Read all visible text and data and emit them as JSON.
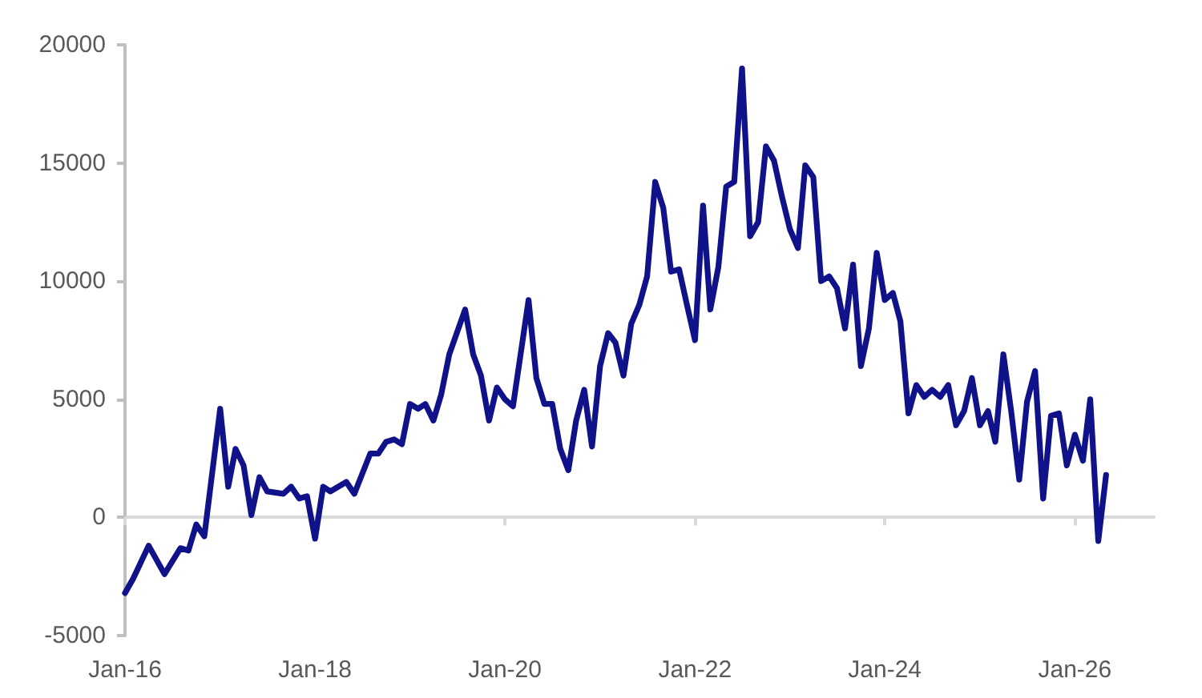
{
  "chart_data": {
    "type": "line",
    "color": "#10128a",
    "line_style": "solid",
    "marker": "none",
    "x": [
      "2016-01",
      "2016-02",
      "2016-04",
      "2016-06",
      "2016-08",
      "2016-09",
      "2016-10",
      "2016-11",
      "2017-01",
      "2017-02",
      "2017-03",
      "2017-04",
      "2017-05",
      "2017-06",
      "2017-07",
      "2017-09",
      "2017-10",
      "2017-11",
      "2017-12",
      "2018-01",
      "2018-02",
      "2018-03",
      "2018-05",
      "2018-06",
      "2018-08",
      "2018-09",
      "2018-10",
      "2018-11",
      "2018-12",
      "2019-01",
      "2019-02",
      "2019-03",
      "2019-04",
      "2019-05",
      "2019-06",
      "2019-08",
      "2019-09",
      "2019-10",
      "2019-11",
      "2019-12",
      "2020-01",
      "2020-02",
      "2020-04",
      "2020-05",
      "2020-06",
      "2020-07",
      "2020-08",
      "2020-09",
      "2020-10",
      "2020-11",
      "2020-12",
      "2021-01",
      "2021-02",
      "2021-03",
      "2021-04",
      "2021-05",
      "2021-06",
      "2021-07",
      "2021-08",
      "2021-09",
      "2021-10",
      "2021-11",
      "2021-12",
      "2022-01",
      "2022-02",
      "2022-03",
      "2022-04",
      "2022-05",
      "2022-06",
      "2022-07",
      "2022-08",
      "2022-09",
      "2022-10",
      "2022-11",
      "2022-12",
      "2023-01",
      "2023-02",
      "2023-03",
      "2023-04",
      "2023-05",
      "2023-06",
      "2023-07",
      "2023-08",
      "2023-09",
      "2023-10",
      "2023-11",
      "2023-12",
      "2024-01",
      "2024-02",
      "2024-03",
      "2024-04",
      "2024-05",
      "2024-06",
      "2024-07",
      "2024-08",
      "2024-09",
      "2024-10",
      "2024-11",
      "2024-12",
      "2025-01",
      "2025-02",
      "2025-03",
      "2025-04",
      "2025-05",
      "2025-06",
      "2025-07",
      "2025-08",
      "2025-09",
      "2025-10",
      "2025-11",
      "2025-12",
      "2026-01",
      "2026-02",
      "2026-03",
      "2026-04",
      "2026-05"
    ],
    "values": [
      -3200,
      -2600,
      -1200,
      -2400,
      -1300,
      -1400,
      -300,
      -800,
      4600,
      1300,
      2900,
      2200,
      100,
      1700,
      1100,
      1000,
      1300,
      800,
      900,
      -900,
      1300,
      1100,
      1500,
      1000,
      2700,
      2700,
      3200,
      3300,
      3100,
      4800,
      4600,
      4800,
      4100,
      5200,
      6900,
      8800,
      6900,
      6000,
      4100,
      5500,
      5000,
      4700,
      9200,
      5900,
      4800,
      4800,
      2900,
      2000,
      4100,
      5400,
      3000,
      6400,
      7800,
      7400,
      6000,
      8200,
      9000,
      10200,
      14200,
      13100,
      10400,
      10500,
      9000,
      7500,
      13200,
      8800,
      10600,
      14000,
      14200,
      19000,
      11900,
      12500,
      15700,
      15100,
      13600,
      12200,
      11400,
      14900,
      14400,
      10000,
      10200,
      9700,
      8000,
      10700,
      6400,
      8000,
      11200,
      9200,
      9500,
      8300,
      4400,
      5600,
      5100,
      5400,
      5100,
      5600,
      3900,
      4500,
      5900,
      3900,
      4500,
      3200,
      6900,
      4500,
      1600,
      4900,
      6200,
      800,
      4300,
      4400,
      2200,
      3500,
      2400,
      5000,
      -1000,
      1800
    ],
    "xlim": [
      "2016-01",
      "2026-11"
    ],
    "xticks": [
      {
        "value": "2016-01",
        "label": "Jan-16"
      },
      {
        "value": "2018-01",
        "label": "Jan-18"
      },
      {
        "value": "2020-01",
        "label": "Jan-20"
      },
      {
        "value": "2022-01",
        "label": "Jan-22"
      },
      {
        "value": "2024-01",
        "label": "Jan-24"
      },
      {
        "value": "2026-01",
        "label": "Jan-26"
      }
    ],
    "ylim": [
      -5000,
      20000
    ],
    "yticks": [
      -5000,
      0,
      5000,
      10000,
      15000,
      20000
    ]
  }
}
